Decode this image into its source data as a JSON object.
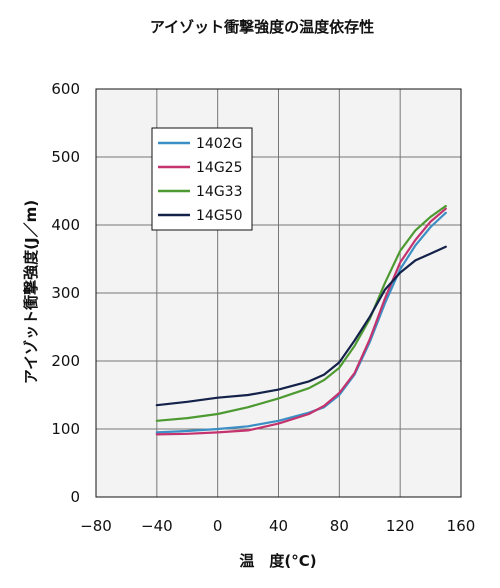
{
  "chart_data": {
    "type": "line",
    "title": "アイゾット衝撃強度の温度依存性",
    "xlabel": "温　度(°C)",
    "ylabel": "アイゾット衝撃強度(J／m)",
    "xlim": [
      -80,
      160
    ],
    "ylim": [
      0,
      600
    ],
    "x_ticks": [
      "−80",
      "−40",
      "0",
      "40",
      "80",
      "120",
      "160"
    ],
    "y_ticks": [
      "0",
      "100",
      "200",
      "300",
      "400",
      "500",
      "600"
    ],
    "grid": true,
    "legend_position": "top-left",
    "series": [
      {
        "name": "1402G",
        "color": "#3b8fc4",
        "points": [
          [
            -40,
            95
          ],
          [
            -20,
            97
          ],
          [
            0,
            100
          ],
          [
            20,
            104
          ],
          [
            40,
            112
          ],
          [
            60,
            124
          ],
          [
            70,
            132
          ],
          [
            80,
            150
          ],
          [
            90,
            180
          ],
          [
            100,
            228
          ],
          [
            110,
            285
          ],
          [
            120,
            335
          ],
          [
            130,
            370
          ],
          [
            140,
            397
          ],
          [
            150,
            418
          ]
        ]
      },
      {
        "name": "14G25",
        "color": "#c4336e",
        "points": [
          [
            -40,
            92
          ],
          [
            -20,
            93
          ],
          [
            0,
            95
          ],
          [
            20,
            98
          ],
          [
            40,
            108
          ],
          [
            60,
            122
          ],
          [
            70,
            134
          ],
          [
            80,
            153
          ],
          [
            90,
            182
          ],
          [
            100,
            232
          ],
          [
            110,
            292
          ],
          [
            120,
            345
          ],
          [
            130,
            378
          ],
          [
            140,
            405
          ],
          [
            150,
            424
          ]
        ]
      },
      {
        "name": "14G33",
        "color": "#4e9a32",
        "points": [
          [
            -40,
            112
          ],
          [
            -20,
            116
          ],
          [
            0,
            122
          ],
          [
            20,
            132
          ],
          [
            40,
            145
          ],
          [
            60,
            160
          ],
          [
            70,
            172
          ],
          [
            80,
            190
          ],
          [
            90,
            222
          ],
          [
            100,
            262
          ],
          [
            110,
            315
          ],
          [
            120,
            362
          ],
          [
            130,
            392
          ],
          [
            140,
            412
          ],
          [
            150,
            428
          ]
        ]
      },
      {
        "name": "14G50",
        "color": "#14224a",
        "points": [
          [
            -40,
            135
          ],
          [
            -20,
            140
          ],
          [
            0,
            146
          ],
          [
            20,
            150
          ],
          [
            40,
            158
          ],
          [
            60,
            170
          ],
          [
            70,
            180
          ],
          [
            80,
            198
          ],
          [
            90,
            230
          ],
          [
            100,
            265
          ],
          [
            110,
            305
          ],
          [
            120,
            330
          ],
          [
            130,
            348
          ],
          [
            140,
            358
          ],
          [
            150,
            368
          ]
        ]
      }
    ]
  }
}
